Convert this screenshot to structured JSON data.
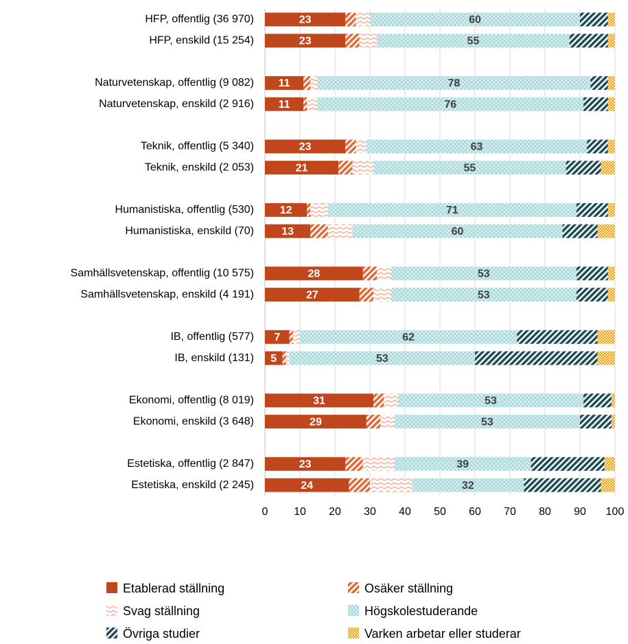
{
  "chart_data": {
    "type": "stacked_bar_horizontal",
    "categories": [
      "HFP, offentlig (36 970)",
      "HFP, enskild (15 254)",
      null,
      "Naturvetenskap, offentlig (9 082)",
      "Naturvetenskap, enskild (2 916)",
      null,
      "Teknik, offentlig (5 340)",
      "Teknik, enskild (2 053)",
      null,
      "Humanistiska, offentlig (530)",
      "Humanistiska, enskild (70)",
      null,
      "Samhällsvetenskap, offentlig (10 575)",
      "Samhällsvetenskap, enskild (4 191)",
      null,
      "IB, offentlig (577)",
      "IB, enskild (131)",
      null,
      "Ekonomi, offentlig (8 019)",
      "Ekonomi, enskild (3 648)",
      null,
      "Estetiska, offentlig (2 847)",
      "Estetiska, enskild (2 245)"
    ],
    "series": [
      {
        "name": "Etablerad ställning",
        "color": "#c0461c",
        "pattern": "solid",
        "show_labels": true,
        "label_color": "#ffffff",
        "values": [
          23,
          23,
          null,
          11,
          11,
          null,
          23,
          21,
          null,
          12,
          13,
          null,
          28,
          27,
          null,
          7,
          5,
          null,
          31,
          29,
          null,
          23,
          24
        ]
      },
      {
        "name": "Osäker ställning",
        "color": "#e2693a",
        "pattern": "diagonal",
        "values": [
          3,
          4,
          null,
          2,
          1,
          null,
          3,
          4,
          null,
          1,
          5,
          null,
          4,
          4,
          null,
          1,
          1,
          null,
          3,
          4,
          null,
          5,
          6
        ]
      },
      {
        "name": "Svag ställning",
        "color": "#f4b8a4",
        "pattern": "wave",
        "values": [
          4,
          5,
          null,
          2,
          3,
          null,
          3,
          6,
          null,
          5,
          7,
          null,
          4,
          5,
          null,
          2,
          1,
          null,
          4,
          4,
          null,
          9,
          12
        ]
      },
      {
        "name": "Högskolestuderande",
        "color": "#a8d8db",
        "pattern": "cross",
        "show_labels": true,
        "label_color": "#404040",
        "values": [
          60,
          55,
          null,
          78,
          76,
          null,
          63,
          55,
          null,
          71,
          60,
          null,
          53,
          53,
          null,
          62,
          53,
          null,
          53,
          53,
          null,
          39,
          32
        ]
      },
      {
        "name": "Övriga studier",
        "color": "#1d4e5a",
        "pattern": "diagonal",
        "values": [
          8,
          11,
          null,
          5,
          7,
          null,
          6,
          10,
          null,
          9,
          10,
          null,
          9,
          9,
          null,
          23,
          35,
          null,
          8,
          9,
          null,
          21,
          22
        ]
      },
      {
        "name": "Varken arbetar eller studerar",
        "color": "#f0a020",
        "pattern": "checker",
        "values": [
          2,
          2,
          null,
          2,
          2,
          null,
          2,
          4,
          null,
          2,
          5,
          null,
          2,
          2,
          null,
          5,
          5,
          null,
          1,
          1,
          null,
          3,
          4
        ]
      }
    ],
    "xlim": [
      0,
      100
    ],
    "xticks": [
      0,
      10,
      20,
      30,
      40,
      50,
      60,
      70,
      80,
      90,
      100
    ],
    "grid": true,
    "legend": "bottom"
  }
}
